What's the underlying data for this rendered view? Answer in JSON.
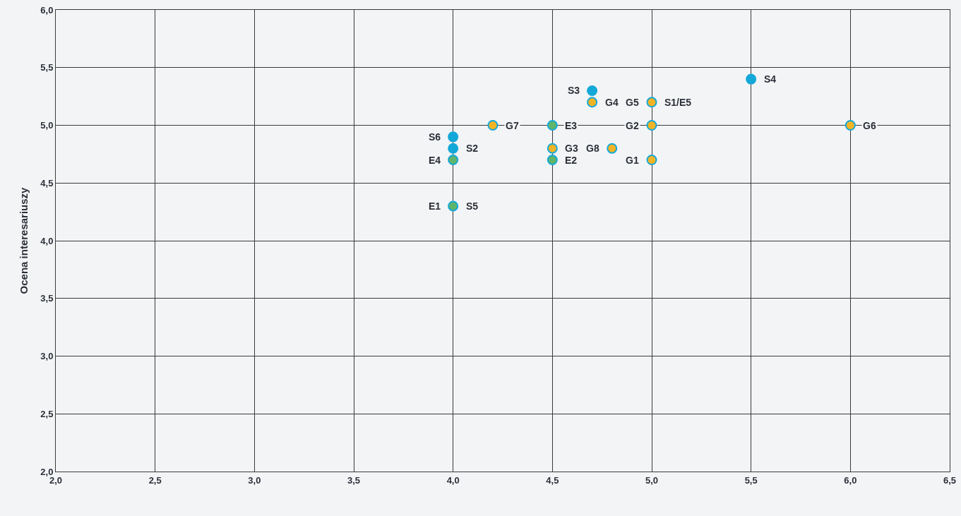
{
  "chart_data": {
    "type": "scatter",
    "ylabel": "Ocena interesariuszy",
    "xlim": [
      2,
      6.5
    ],
    "xticks": [
      {
        "value": 2,
        "label": "2,0"
      },
      {
        "value": 2.5,
        "label": "2,5"
      },
      {
        "value": 3,
        "label": "3,0"
      },
      {
        "value": 3.5,
        "label": "3,5"
      },
      {
        "value": 4,
        "label": "4,0"
      },
      {
        "value": 4.5,
        "label": "4,5"
      },
      {
        "value": 5,
        "label": "5,0"
      },
      {
        "value": 5.5,
        "label": "5,5"
      },
      {
        "value": 6,
        "label": "6,0"
      },
      {
        "value": 6.5,
        "label": "6,5"
      }
    ],
    "ylim": [
      2,
      6
    ],
    "yticks": [
      {
        "value": 2,
        "label": "2,0"
      },
      {
        "value": 2.5,
        "label": "2,5"
      },
      {
        "value": 3,
        "label": "3,0"
      },
      {
        "value": 3.5,
        "label": "3,5"
      },
      {
        "value": 4,
        "label": "4,0"
      },
      {
        "value": 4.5,
        "label": "4,5"
      },
      {
        "value": 5,
        "label": "5,0"
      },
      {
        "value": 5.5,
        "label": "5,5"
      },
      {
        "value": 6,
        "label": "6,0"
      }
    ],
    "grid": true,
    "marker": "circle",
    "series": [
      {
        "color": "#14a8d8",
        "x": [
          4.7,
          5.5,
          4,
          4
        ],
        "values": [
          5.3,
          5.4,
          4.9,
          4.8
        ]
      },
      {
        "color": "#f2b425",
        "x": [
          4.7,
          5,
          6,
          5,
          5,
          4.8,
          4.5,
          4.2
        ],
        "values": [
          5.2,
          5.2,
          5,
          5,
          4.7,
          4.8,
          4.8,
          5
        ]
      },
      {
        "color": "#5fb56a",
        "x": [
          4.5,
          4.5,
          4,
          4
        ],
        "values": [
          5,
          4.7,
          4.7,
          4.3
        ]
      }
    ],
    "annotations": [
      {
        "text": "S3",
        "x": 4.7,
        "y": 5.3
      },
      {
        "text": "G4",
        "x": 4.7,
        "y": 5.2
      },
      {
        "text": "G5",
        "x": 5,
        "y": 5.2
      },
      {
        "text": "S1/E5",
        "x": 5,
        "y": 5.2
      },
      {
        "text": "S4",
        "x": 5.5,
        "y": 5.4
      },
      {
        "text": "G6",
        "x": 6,
        "y": 5
      },
      {
        "text": "G2",
        "x": 5,
        "y": 5
      },
      {
        "text": "G1",
        "x": 5,
        "y": 4.7
      },
      {
        "text": "G8",
        "x": 4.8,
        "y": 4.8
      },
      {
        "text": "G3",
        "x": 4.5,
        "y": 4.8
      },
      {
        "text": "E2",
        "x": 4.5,
        "y": 4.7
      },
      {
        "text": "E3",
        "x": 4.5,
        "y": 5
      },
      {
        "text": "G7",
        "x": 4.2,
        "y": 5
      },
      {
        "text": "S6",
        "x": 4,
        "y": 4.9
      },
      {
        "text": "S2",
        "x": 4,
        "y": 4.8
      },
      {
        "text": "E4",
        "x": 4,
        "y": 4.7
      },
      {
        "text": "E1",
        "x": 4,
        "y": 4.3
      },
      {
        "text": "S5",
        "x": 4,
        "y": 4.3
      }
    ]
  }
}
